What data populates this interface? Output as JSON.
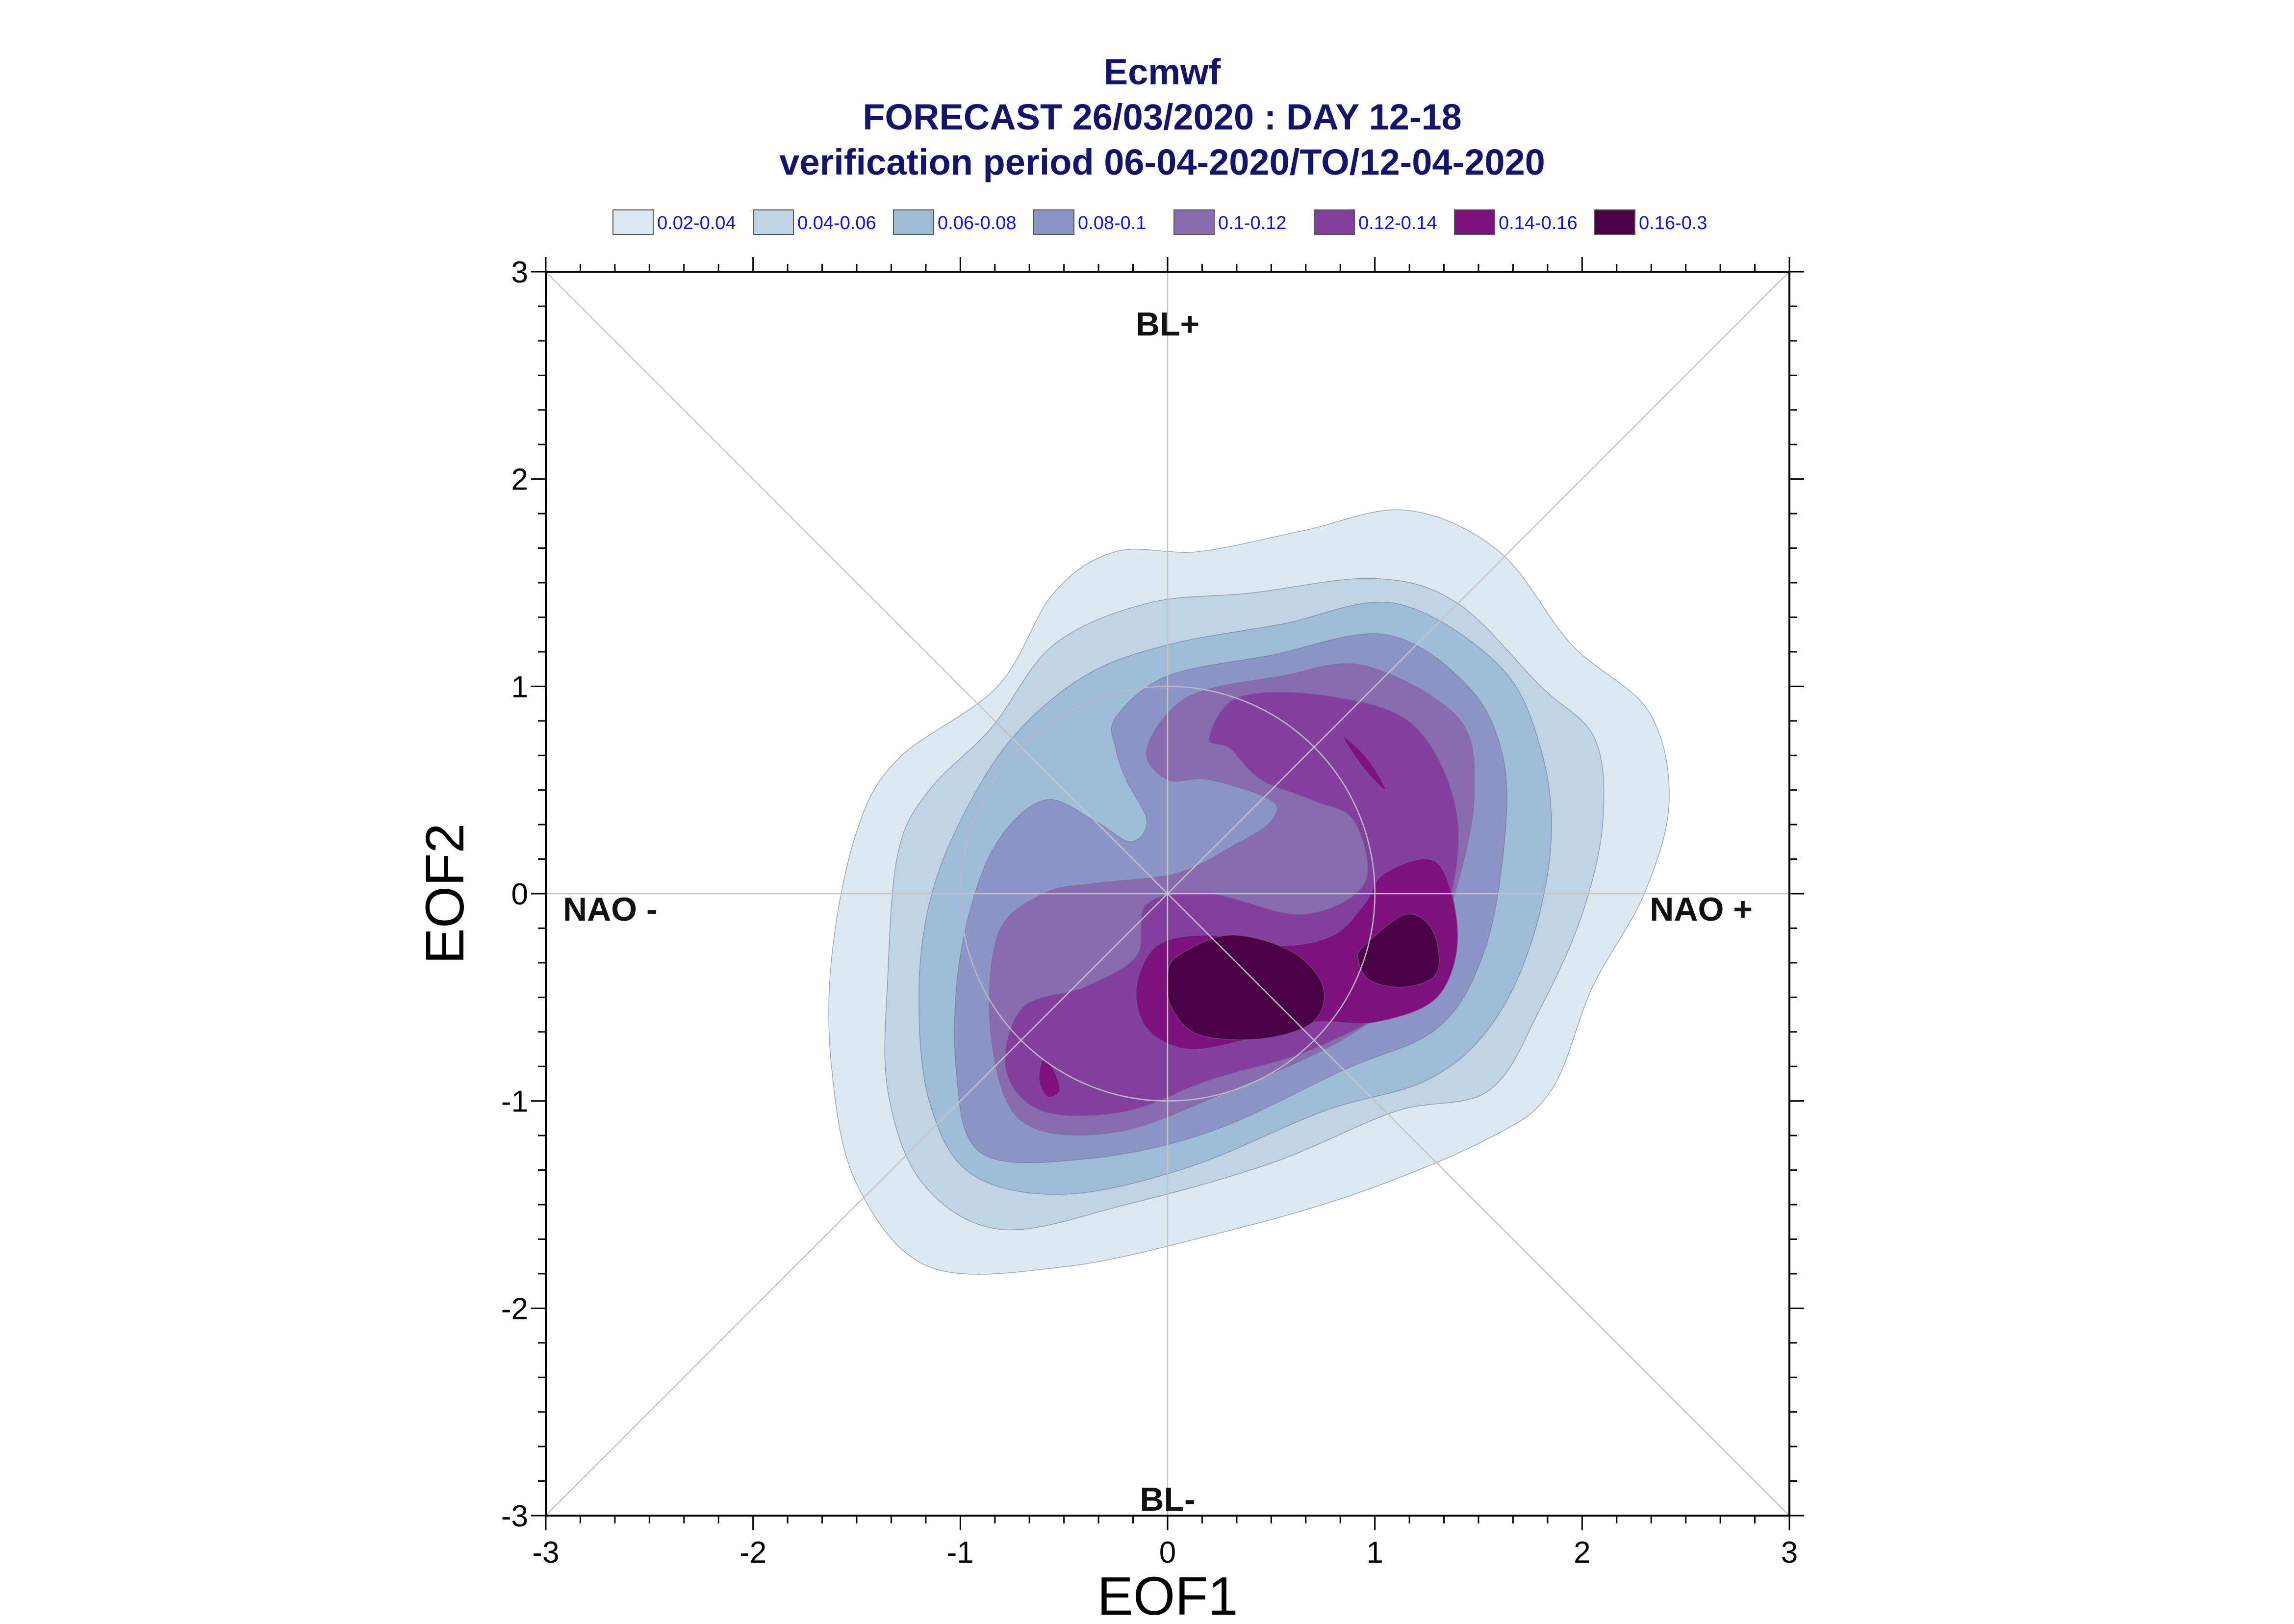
{
  "chart_data": {
    "type": "contour",
    "title_lines": [
      "Ecmwf",
      "FORECAST 26/03/2020 : DAY 12-18",
      "verification period 06-04-2020/TO/12-04-2020"
    ],
    "xlabel": "EOF1",
    "ylabel": "EOF2",
    "xlim": [
      -3,
      3
    ],
    "ylim": [
      -3,
      3
    ],
    "xticks": [
      -3,
      -2,
      -1,
      0,
      1,
      2,
      3
    ],
    "yticks": [
      -3,
      -2,
      -1,
      0,
      1,
      2,
      3
    ],
    "legend": [
      {
        "label": "0.02-0.04",
        "color": "#dde9f1"
      },
      {
        "label": "0.04-0.06",
        "color": "#bfd4e4"
      },
      {
        "label": "0.06-0.08",
        "color": "#9fbcd9"
      },
      {
        "label": "0.08-0.1",
        "color": "#8c95c6"
      },
      {
        "label": "0.1-0.12",
        "color": "#8a6bb0"
      },
      {
        "label": "0.12-0.14",
        "color": "#843f9e"
      },
      {
        "label": "0.14-0.16",
        "color": "#7e117e"
      },
      {
        "label": "0.16-0.3",
        "color": "#4b0046"
      }
    ],
    "regimes": [
      {
        "label": "BL+",
        "position": "top"
      },
      {
        "label": "BL-",
        "position": "bottom"
      },
      {
        "label": "NAO -",
        "position": "left"
      },
      {
        "label": "NAO +",
        "position": "right"
      }
    ],
    "circle_radius": 1,
    "density_contours": [
      {
        "level": 0.02,
        "points": [
          [
            -0.82,
            1.0
          ],
          [
            -0.55,
            1.45
          ],
          [
            -0.25,
            1.65
          ],
          [
            0.15,
            1.65
          ],
          [
            0.65,
            1.75
          ],
          [
            1.15,
            1.85
          ],
          [
            1.6,
            1.65
          ],
          [
            1.95,
            1.2
          ],
          [
            2.32,
            0.88
          ],
          [
            2.42,
            0.45
          ],
          [
            2.3,
            0.0
          ],
          [
            2.05,
            -0.45
          ],
          [
            1.85,
            -0.95
          ],
          [
            1.55,
            -1.18
          ],
          [
            0.9,
            -1.45
          ],
          [
            0.2,
            -1.65
          ],
          [
            -0.5,
            -1.8
          ],
          [
            -1.15,
            -1.8
          ],
          [
            -1.5,
            -1.4
          ],
          [
            -1.62,
            -0.85
          ],
          [
            -1.62,
            -0.3
          ],
          [
            -1.5,
            0.3
          ],
          [
            -1.3,
            0.65
          ]
        ]
      },
      {
        "level": 0.04,
        "points": [
          [
            -0.85,
            0.8
          ],
          [
            -0.55,
            1.2
          ],
          [
            -0.1,
            1.4
          ],
          [
            0.4,
            1.45
          ],
          [
            1.0,
            1.52
          ],
          [
            1.4,
            1.4
          ],
          [
            1.8,
            1.0
          ],
          [
            2.06,
            0.75
          ],
          [
            2.1,
            0.35
          ],
          [
            2.0,
            -0.1
          ],
          [
            1.8,
            -0.55
          ],
          [
            1.55,
            -0.95
          ],
          [
            1.1,
            -1.05
          ],
          [
            0.5,
            -1.3
          ],
          [
            -0.2,
            -1.5
          ],
          [
            -0.8,
            -1.62
          ],
          [
            -1.18,
            -1.4
          ],
          [
            -1.35,
            -0.95
          ],
          [
            -1.35,
            -0.4
          ],
          [
            -1.3,
            0.2
          ],
          [
            -1.15,
            0.5
          ]
        ]
      },
      {
        "level": 0.06,
        "points": [
          [
            -0.75,
            0.75
          ],
          [
            -0.4,
            1.05
          ],
          [
            0.0,
            1.2
          ],
          [
            0.55,
            1.3
          ],
          [
            1.1,
            1.4
          ],
          [
            1.6,
            1.1
          ],
          [
            1.8,
            0.7
          ],
          [
            1.85,
            0.25
          ],
          [
            1.75,
            -0.25
          ],
          [
            1.55,
            -0.65
          ],
          [
            1.25,
            -0.9
          ],
          [
            0.75,
            -1.05
          ],
          [
            0.1,
            -1.32
          ],
          [
            -0.5,
            -1.45
          ],
          [
            -0.95,
            -1.35
          ],
          [
            -1.15,
            -1.0
          ],
          [
            -1.2,
            -0.5
          ],
          [
            -1.15,
            -0.05
          ],
          [
            -1.0,
            0.35
          ]
        ]
      },
      {
        "level": 0.08,
        "points": [
          [
            -0.25,
            0.85
          ],
          [
            0.0,
            1.05
          ],
          [
            0.5,
            1.15
          ],
          [
            1.05,
            1.25
          ],
          [
            1.45,
            1.0
          ],
          [
            1.62,
            0.65
          ],
          [
            1.62,
            0.2
          ],
          [
            1.52,
            -0.3
          ],
          [
            1.3,
            -0.65
          ],
          [
            0.85,
            -0.85
          ],
          [
            0.2,
            -1.15
          ],
          [
            -0.4,
            -1.28
          ],
          [
            -0.9,
            -1.25
          ],
          [
            -1.02,
            -0.85
          ],
          [
            -1.0,
            -0.3
          ],
          [
            -0.85,
            0.2
          ],
          [
            -0.6,
            0.45
          ],
          [
            -0.35,
            0.35
          ],
          [
            -0.18,
            0.25
          ],
          [
            -0.1,
            0.35
          ],
          [
            -0.2,
            0.55
          ],
          [
            -0.25,
            0.7
          ]
        ]
      },
      {
        "level": 0.1,
        "points": [
          [
            -0.1,
            0.7
          ],
          [
            0.1,
            0.95
          ],
          [
            0.55,
            1.05
          ],
          [
            0.95,
            1.1
          ],
          [
            1.4,
            0.85
          ],
          [
            1.48,
            0.5
          ],
          [
            1.4,
            0.05
          ],
          [
            1.22,
            -0.4
          ],
          [
            0.85,
            -0.7
          ],
          [
            0.3,
            -0.95
          ],
          [
            -0.25,
            -1.15
          ],
          [
            -0.7,
            -1.1
          ],
          [
            -0.85,
            -0.7
          ],
          [
            -0.82,
            -0.2
          ],
          [
            -0.6,
            0.0
          ],
          [
            -0.35,
            0.05
          ],
          [
            0.05,
            0.1
          ],
          [
            0.35,
            0.25
          ],
          [
            0.5,
            0.35
          ],
          [
            0.5,
            0.45
          ],
          [
            0.2,
            0.55
          ],
          [
            0.0,
            0.55
          ]
        ]
      },
      {
        "level": 0.12,
        "points": [
          [
            0.2,
            0.75
          ],
          [
            0.35,
            0.95
          ],
          [
            0.8,
            0.95
          ],
          [
            1.2,
            0.8
          ],
          [
            1.4,
            0.35
          ],
          [
            1.32,
            -0.2
          ],
          [
            1.15,
            -0.5
          ],
          [
            0.7,
            -0.75
          ],
          [
            0.2,
            -0.9
          ],
          [
            -0.2,
            -1.05
          ],
          [
            -0.6,
            -1.05
          ],
          [
            -0.78,
            -0.85
          ],
          [
            -0.7,
            -0.55
          ],
          [
            -0.4,
            -0.45
          ],
          [
            -0.15,
            -0.3
          ],
          [
            -0.1,
            -0.05
          ],
          [
            0.2,
            0.0
          ],
          [
            0.65,
            -0.1
          ],
          [
            0.95,
            0.05
          ],
          [
            0.9,
            0.35
          ],
          [
            0.7,
            0.45
          ],
          [
            0.45,
            0.55
          ],
          [
            0.3,
            0.7
          ]
        ]
      },
      {
        "level": 0.14,
        "points": [
          [
            1.05,
            0.1
          ],
          [
            1.3,
            0.15
          ],
          [
            1.4,
            -0.2
          ],
          [
            1.3,
            -0.5
          ],
          [
            1.0,
            -0.62
          ],
          [
            0.7,
            -0.62
          ],
          [
            0.4,
            -0.7
          ],
          [
            0.1,
            -0.75
          ],
          [
            -0.1,
            -0.65
          ],
          [
            -0.15,
            -0.45
          ],
          [
            -0.05,
            -0.25
          ],
          [
            0.2,
            -0.2
          ],
          [
            0.55,
            -0.25
          ],
          [
            0.8,
            -0.2
          ],
          [
            0.95,
            -0.05
          ]
        ]
      },
      {
        "level": 0.14,
        "points": [
          [
            0.85,
            0.75
          ],
          [
            0.95,
            0.6
          ],
          [
            1.05,
            0.5
          ],
          [
            1.0,
            0.6
          ],
          [
            0.92,
            0.7
          ]
        ]
      },
      {
        "level": 0.14,
        "points": [
          [
            -0.6,
            -0.8
          ],
          [
            -0.55,
            -0.85
          ],
          [
            -0.52,
            -0.95
          ],
          [
            -0.58,
            -0.98
          ],
          [
            -0.62,
            -0.9
          ]
        ]
      },
      {
        "level": 0.16,
        "points": [
          [
            0.05,
            -0.3
          ],
          [
            0.3,
            -0.2
          ],
          [
            0.6,
            -0.28
          ],
          [
            0.75,
            -0.45
          ],
          [
            0.7,
            -0.62
          ],
          [
            0.45,
            -0.7
          ],
          [
            0.15,
            -0.68
          ],
          [
            0.02,
            -0.55
          ],
          [
            0.0,
            -0.4
          ]
        ]
      },
      {
        "level": 0.16,
        "points": [
          [
            0.95,
            -0.25
          ],
          [
            1.15,
            -0.1
          ],
          [
            1.28,
            -0.18
          ],
          [
            1.3,
            -0.38
          ],
          [
            1.15,
            -0.45
          ],
          [
            0.98,
            -0.42
          ],
          [
            0.92,
            -0.32
          ]
        ]
      }
    ]
  }
}
